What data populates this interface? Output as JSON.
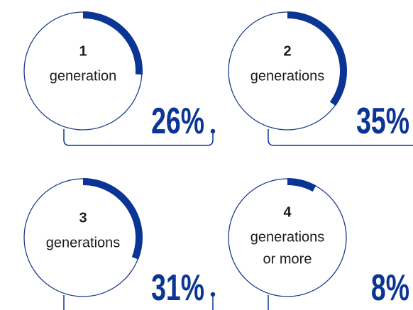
{
  "chart_data": {
    "type": "gauge",
    "categories": [
      [
        "1",
        "generation"
      ],
      [
        "2",
        "generations"
      ],
      [
        "3",
        "generations"
      ],
      [
        "4",
        "generations",
        "or more"
      ]
    ],
    "values": [
      26,
      35,
      31,
      8
    ],
    "value_labels": [
      "26%",
      "35%",
      "31%",
      "8%"
    ],
    "color": "#0a3595"
  }
}
